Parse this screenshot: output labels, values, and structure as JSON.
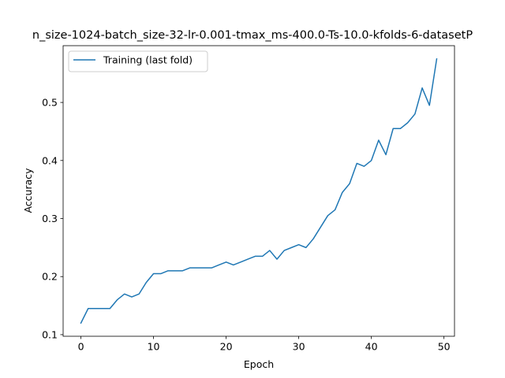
{
  "chart_data": {
    "type": "line",
    "title": "n_size-1024-batch_size-32-lr-0.001-tmax_ms-400.0-Ts-10.0-kfolds-6-datasetP",
    "xlabel": "Epoch",
    "ylabel": "Accuracy",
    "xlim": [
      -2.45,
      51.45
    ],
    "ylim": [
      0.0972,
      0.5978
    ],
    "xticks": [
      0,
      10,
      20,
      30,
      40,
      50
    ],
    "yticks": [
      0.1,
      0.2,
      0.3,
      0.4,
      0.5
    ],
    "xtick_labels": [
      "0",
      "10",
      "20",
      "30",
      "40",
      "50"
    ],
    "ytick_labels": [
      "0.1",
      "0.2",
      "0.3",
      "0.4",
      "0.5"
    ],
    "grid": false,
    "legend_position": "top-left",
    "series": [
      {
        "name": "Training (last fold)",
        "color": "#1f77b4",
        "x": [
          0,
          1,
          2,
          3,
          4,
          5,
          6,
          7,
          8,
          9,
          10,
          11,
          12,
          13,
          14,
          15,
          16,
          17,
          18,
          19,
          20,
          21,
          22,
          23,
          24,
          25,
          26,
          27,
          28,
          29,
          30,
          31,
          32,
          33,
          34,
          35,
          36,
          37,
          38,
          39,
          40,
          41,
          42,
          43,
          44,
          45,
          46,
          47,
          48,
          49
        ],
        "y": [
          0.12,
          0.145,
          0.145,
          0.145,
          0.145,
          0.16,
          0.17,
          0.165,
          0.17,
          0.19,
          0.205,
          0.205,
          0.21,
          0.21,
          0.21,
          0.215,
          0.215,
          0.215,
          0.215,
          0.22,
          0.225,
          0.22,
          0.225,
          0.23,
          0.235,
          0.235,
          0.245,
          0.23,
          0.245,
          0.25,
          0.255,
          0.25,
          0.265,
          0.285,
          0.305,
          0.315,
          0.345,
          0.36,
          0.395,
          0.39,
          0.4,
          0.435,
          0.41,
          0.455,
          0.455,
          0.465,
          0.48,
          0.525,
          0.495,
          0.575
        ]
      }
    ]
  }
}
